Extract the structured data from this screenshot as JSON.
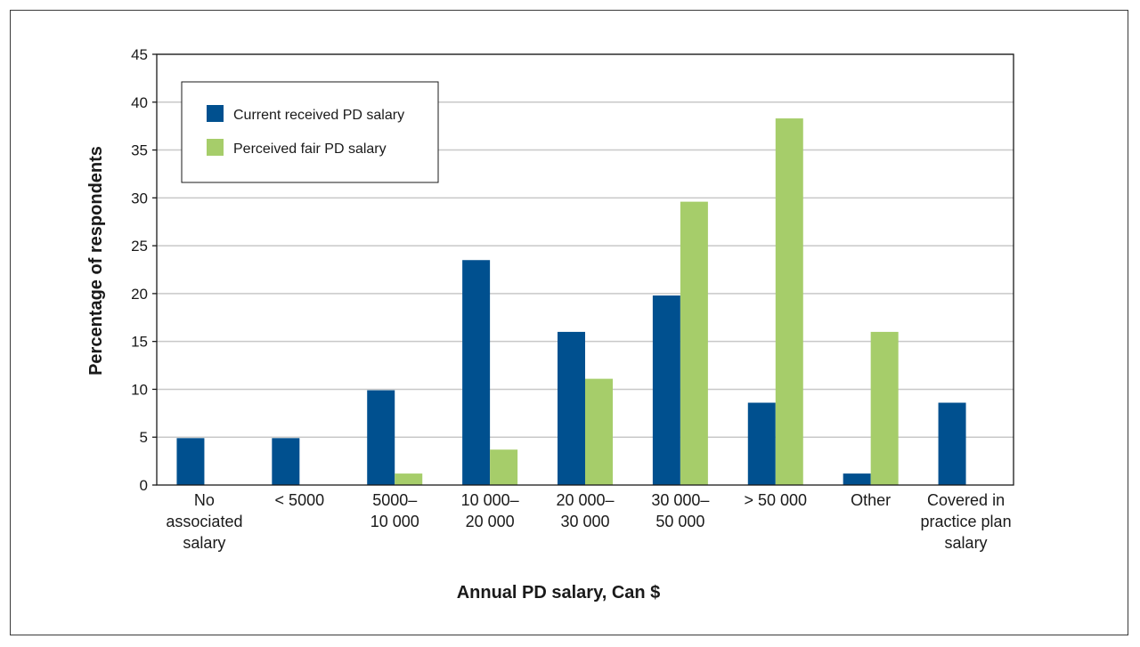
{
  "chart_data": {
    "type": "bar",
    "xlabel": "Annual PD salary, Can $",
    "ylabel": "Percentage of respondents",
    "ylim": [
      0,
      45
    ],
    "yticks": [
      0,
      5,
      10,
      15,
      20,
      25,
      30,
      35,
      40,
      45
    ],
    "grid": "horizontal",
    "legend_position": "top-left",
    "categories": [
      [
        "No",
        "associated",
        "salary"
      ],
      [
        "< 5000"
      ],
      [
        "5000–",
        "10 000"
      ],
      [
        "10 000–",
        "20 000"
      ],
      [
        "20 000–",
        "30 000"
      ],
      [
        "30 000–",
        "50 000"
      ],
      [
        "> 50 000"
      ],
      [
        "Other"
      ],
      [
        "Covered in",
        "practice plan",
        "salary"
      ]
    ],
    "series": [
      {
        "name": "Current received PD salary",
        "color": "#00508f",
        "values": [
          4.9,
          4.9,
          9.9,
          23.5,
          16.0,
          19.8,
          8.6,
          1.2,
          8.6
        ]
      },
      {
        "name": "Perceived fair PD salary",
        "color": "#a6cd6a",
        "values": [
          0,
          0,
          1.2,
          3.7,
          11.1,
          29.6,
          38.3,
          16.0,
          0
        ]
      }
    ],
    "colors": {
      "grid": "#c8c8c8",
      "axis": "#1a1a1a",
      "frame": "#3a3a3a"
    }
  }
}
